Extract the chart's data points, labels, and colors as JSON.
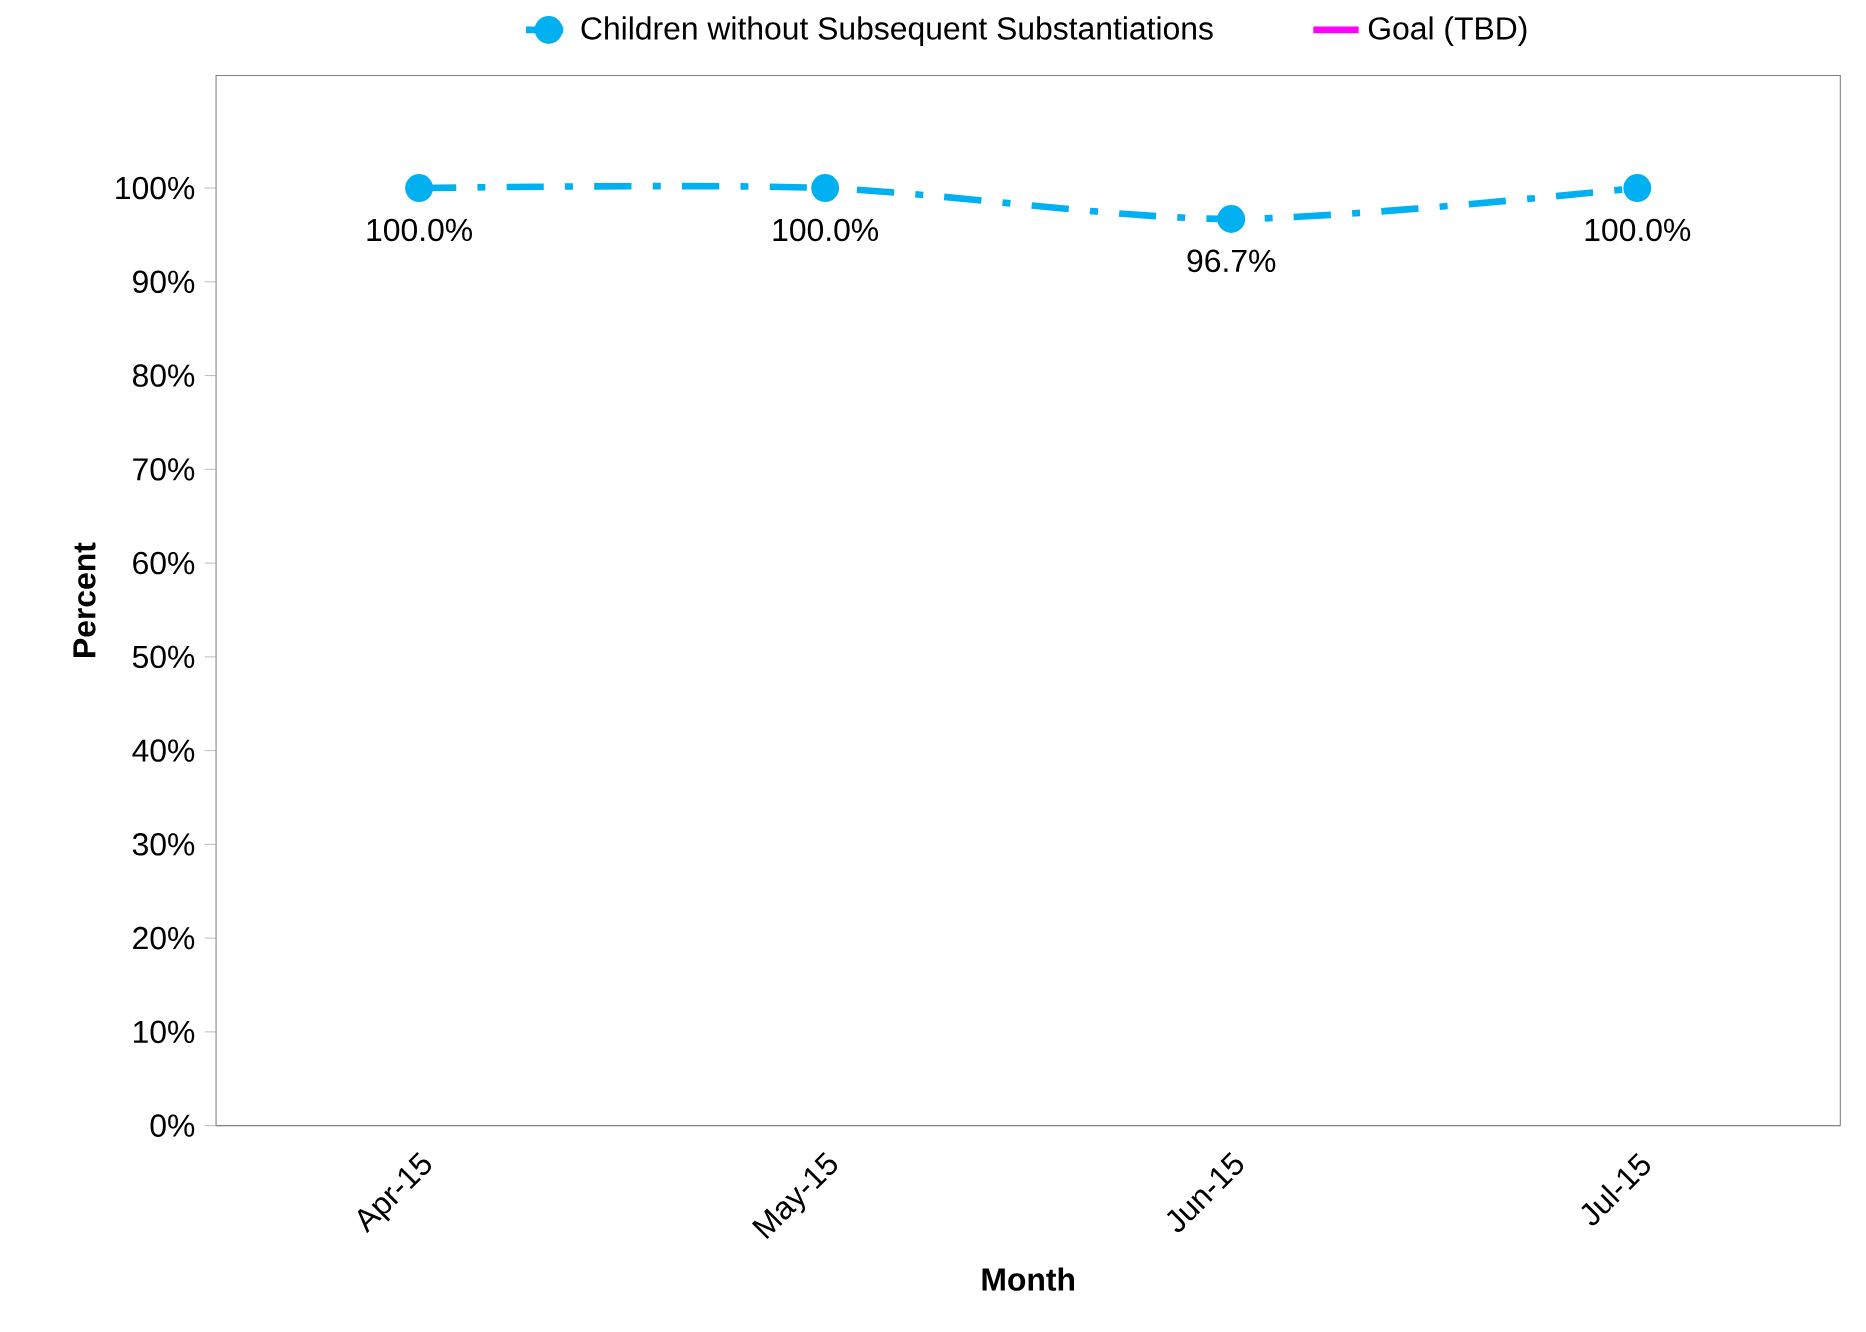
{
  "chart_data": {
    "type": "line",
    "xlabel": "Month",
    "ylabel": "Percent",
    "categories": [
      "Apr-15",
      "May-15",
      "Jun-15",
      "Jul-15"
    ],
    "series": [
      {
        "name": "Children without Subsequent Substantiations",
        "color": "#00b0f0",
        "values": [
          100,
          100,
          96.7,
          100
        ],
        "value_labels": [
          "100.0%",
          "100.0%",
          "96.7%",
          "100.0%"
        ],
        "marker": "circle",
        "line_style": "dashed"
      },
      {
        "name": "Goal (TBD)",
        "color": "#ff00ff",
        "values": [
          null,
          null,
          null,
          null
        ],
        "marker": "none",
        "line_style": "solid"
      }
    ],
    "ylim": [
      0,
      112
    ],
    "yticks": [
      {
        "value": 0,
        "label": "0%"
      },
      {
        "value": 10,
        "label": "10%"
      },
      {
        "value": 20,
        "label": "20%"
      },
      {
        "value": 30,
        "label": "30%"
      },
      {
        "value": 40,
        "label": "40%"
      },
      {
        "value": 50,
        "label": "50%"
      },
      {
        "value": 60,
        "label": "60%"
      },
      {
        "value": 70,
        "label": "70%"
      },
      {
        "value": 80,
        "label": "80%"
      },
      {
        "value": 90,
        "label": "90%"
      },
      {
        "value": 100,
        "label": "100%"
      }
    ],
    "legend": "top",
    "grid": false
  }
}
